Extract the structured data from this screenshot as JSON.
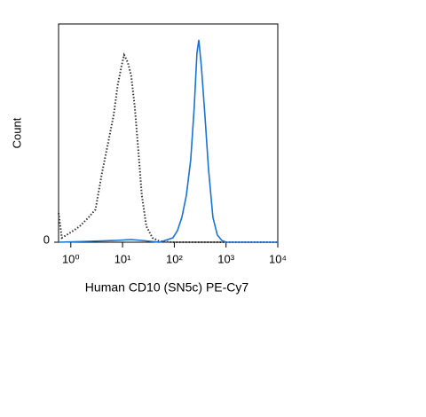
{
  "chart_data": {
    "type": "line",
    "log_x": true,
    "x_label": "Human CD10 (SN5c) PE-Cy7",
    "y_label": "Count",
    "xlim": [
      0.58,
      10000
    ],
    "ylim": [
      0,
      100
    ],
    "xticks": [
      {
        "value": 1,
        "label": "10⁰"
      },
      {
        "value": 10,
        "label": "10¹"
      },
      {
        "value": 100,
        "label": "10²"
      },
      {
        "value": 1000,
        "label": "10³"
      },
      {
        "value": 10000,
        "label": "10⁴"
      }
    ],
    "yticks": [
      0
    ],
    "series": [
      {
        "color": "#333333",
        "style": "dotted",
        "x": [
          0.58,
          0.67,
          1,
          1.49,
          2.2,
          3.0,
          4.0,
          5.3,
          6.7,
          8.1,
          9.5,
          10.7,
          12.6,
          14.7,
          17.2,
          20.2,
          23.6,
          28.8,
          37.9,
          52,
          94,
          10000
        ],
        "values": [
          13.4,
          2.0,
          4.5,
          7.3,
          11.4,
          15.0,
          31.7,
          45.9,
          58.1,
          72.4,
          80.5,
          85.8,
          82.5,
          76.4,
          62.2,
          41.9,
          21.5,
          7.3,
          2.0,
          0.4,
          0,
          0
        ]
      },
      {
        "color": "#1a73d1",
        "style": "solid",
        "x": [
          0.58,
          2.2,
          7.2,
          14.7,
          23.6,
          52,
          94,
          115,
          140,
          171,
          208,
          243,
          274,
          297,
          334,
          391,
          458,
          558,
          680,
          829,
          1009,
          10000
        ],
        "values": [
          0,
          0.4,
          0.8,
          1.2,
          0.8,
          0,
          2,
          5.3,
          11.4,
          21.5,
          37.8,
          62.2,
          86.6,
          92.7,
          80.5,
          58.1,
          33.7,
          11.4,
          3.3,
          0.8,
          0,
          0
        ]
      }
    ]
  }
}
